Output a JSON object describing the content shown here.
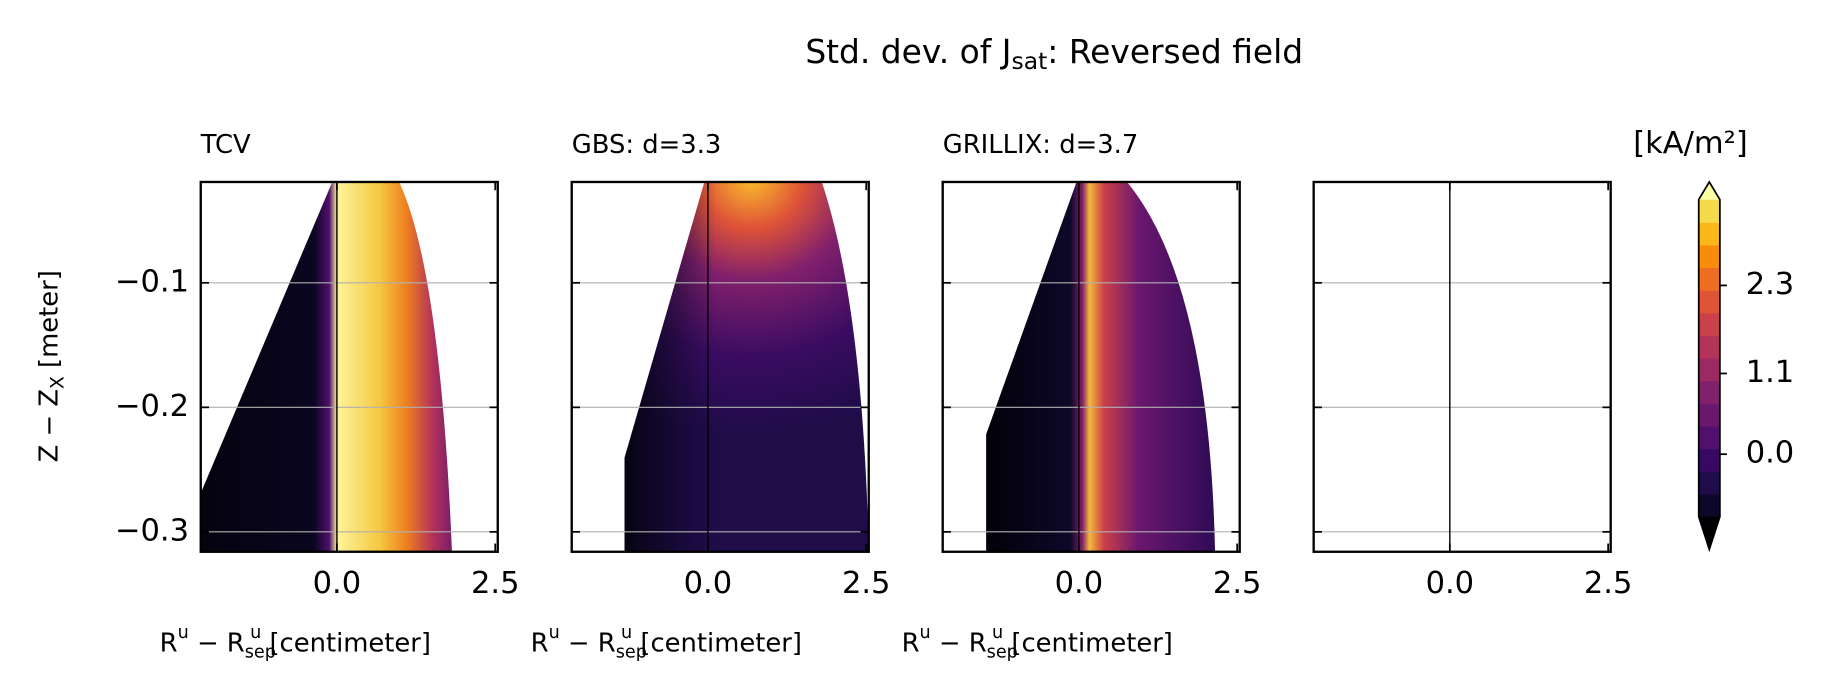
{
  "title": {
    "main": "Std. dev. of J",
    "subscript": "sat",
    "rest": ": Reversed field"
  },
  "chart_data": [
    {
      "type": "contour",
      "title": "TCV",
      "xlabel": {
        "base": "R",
        "sup": "u",
        "mid": " − R",
        "sub": "sep",
        "sup2": "u",
        "rest": " [centimeter]"
      },
      "ylabel": {
        "base": "Z − Z",
        "sub": "X",
        "rest": " [meter]"
      },
      "xlim": [
        -2.15,
        2.54
      ],
      "xticks": [
        {
          "value": 0,
          "label": "0.0"
        },
        {
          "value": 2.5,
          "label": "2.5"
        }
      ],
      "ylim": [
        -0.316,
        -0.019
      ],
      "yticks": [
        {
          "value": -0.1,
          "label": "−0.1"
        },
        {
          "value": -0.2,
          "label": "−0.2"
        },
        {
          "value": -0.3,
          "label": "−0.3"
        }
      ],
      "grid": true
    },
    {
      "type": "contour",
      "title": "GBS: d=3.3",
      "xlabel": {
        "base": "R",
        "sup": "u",
        "mid": " − R",
        "sub": "sep",
        "sup2": "u",
        "rest": " [centimeter]"
      },
      "xlim": [
        -2.15,
        2.54
      ],
      "xticks": [
        {
          "value": 0,
          "label": "0.0"
        },
        {
          "value": 2.5,
          "label": "2.5"
        }
      ],
      "ylim": [
        -0.316,
        -0.019
      ],
      "yticks": [
        -0.1,
        -0.2,
        -0.3
      ],
      "grid": true
    },
    {
      "type": "contour",
      "title": "GRILLIX: d=3.7",
      "xlabel": {
        "base": "R",
        "sup": "u",
        "mid": " − R",
        "sub": "sep",
        "sup2": "u",
        "rest": " [centimeter]"
      },
      "xlim": [
        -2.15,
        2.54
      ],
      "xticks": [
        {
          "value": 0,
          "label": "0.0"
        },
        {
          "value": 2.5,
          "label": "2.5"
        }
      ],
      "ylim": [
        -0.316,
        -0.019
      ],
      "yticks": [
        -0.1,
        -0.2,
        -0.3
      ],
      "grid": true
    },
    {
      "type": "contour",
      "xlim": [
        -2.15,
        2.54
      ],
      "xticks": [
        {
          "value": 0,
          "label": "0.0"
        },
        {
          "value": 2.5,
          "label": "2.5"
        }
      ],
      "ylim": [
        -0.316,
        -0.019
      ],
      "yticks": [
        -0.1,
        -0.2,
        -0.3
      ],
      "grid": true
    }
  ],
  "colorbar": {
    "label": "[kA/m²]",
    "lim": [
      -0.85,
      3.47
    ],
    "ticks": [
      {
        "value": 0,
        "label": "0.0"
      },
      {
        "value": 1.1,
        "label": "1.1"
      },
      {
        "value": 2.3,
        "label": "2.3"
      }
    ],
    "colors": [
      "#0d0829",
      "#1f0c48",
      "#380962",
      "#51106e",
      "#6a176e",
      "#82206c",
      "#9b2964",
      "#b43359",
      "#cb4149",
      "#df5337",
      "#ef6e21",
      "#f98c0a",
      "#fbb61a",
      "#f5db4c"
    ],
    "extend_colors": [
      "#000004",
      "#fcffa4"
    ]
  }
}
